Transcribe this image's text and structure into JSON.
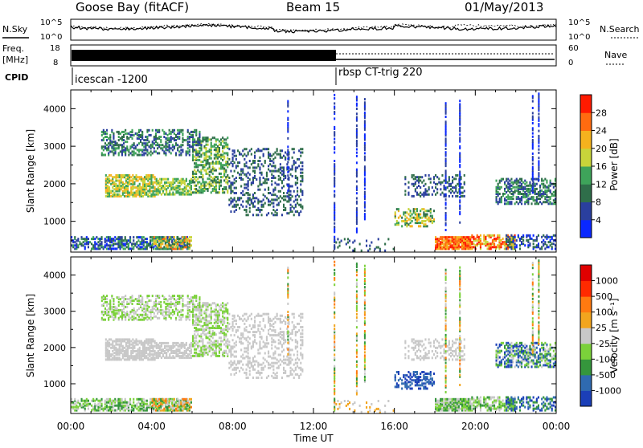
{
  "header": {
    "station": "Goose Bay (fitACF)",
    "beam": "Beam 15",
    "date": "01/May/2013"
  },
  "params": {
    "nsky_label": "N.Sky",
    "nsearch_label": "N.Search",
    "freq_label": "Freq.",
    "freq_unit": "[MHz]",
    "nave_label": "Nave",
    "cpid_label": "CPID",
    "noise_ticks": [
      "10^5",
      "10^0"
    ],
    "freq_ticks": [
      "18",
      "8"
    ],
    "nave_ticks": [
      "60",
      "0"
    ],
    "cpid_1": "icescan -1200",
    "cpid_2": "rbsp CT-trig 220"
  },
  "chart_data": [
    {
      "type": "heatmap",
      "panel": "power",
      "ylabel": "Slant Range [km]",
      "xlim": [
        "00:00",
        "24:00"
      ],
      "ylim": [
        180,
        4500
      ],
      "yticks": [
        1000,
        2000,
        3000,
        4000
      ],
      "colorbar": {
        "label": "Power [dB]",
        "ticks": [
          "28",
          "24",
          "20",
          "16",
          "12",
          "8",
          "4"
        ],
        "colors": [
          "#0a28ff",
          "#2a3f9e",
          "#2f6e4a",
          "#3ea35a",
          "#c8d43a",
          "#f5b21e",
          "#ff6b10",
          "#ff1a00"
        ]
      }
    },
    {
      "type": "heatmap",
      "panel": "velocity",
      "ylabel": "Slant Range [km]",
      "xlabel": "Time UT",
      "xlim": [
        "00:00",
        "24:00"
      ],
      "ylim": [
        180,
        4500
      ],
      "yticks": [
        1000,
        2000,
        3000,
        4000
      ],
      "xticks": [
        "00:00",
        "04:00",
        "08:00",
        "12:00",
        "16:00",
        "20:00",
        "00:00"
      ],
      "colorbar": {
        "label": "Velocity [m s⁻¹]",
        "ticks": [
          "1000",
          "500",
          "100",
          "25",
          "-25",
          "-100",
          "-500",
          "-1000"
        ],
        "colors": [
          "#1b3fb8",
          "#2f6ab0",
          "#35963c",
          "#7bd13a",
          "#c8c8c8",
          "#f2a51e",
          "#ff7a10",
          "#ff2a00",
          "#e00000"
        ]
      }
    }
  ]
}
